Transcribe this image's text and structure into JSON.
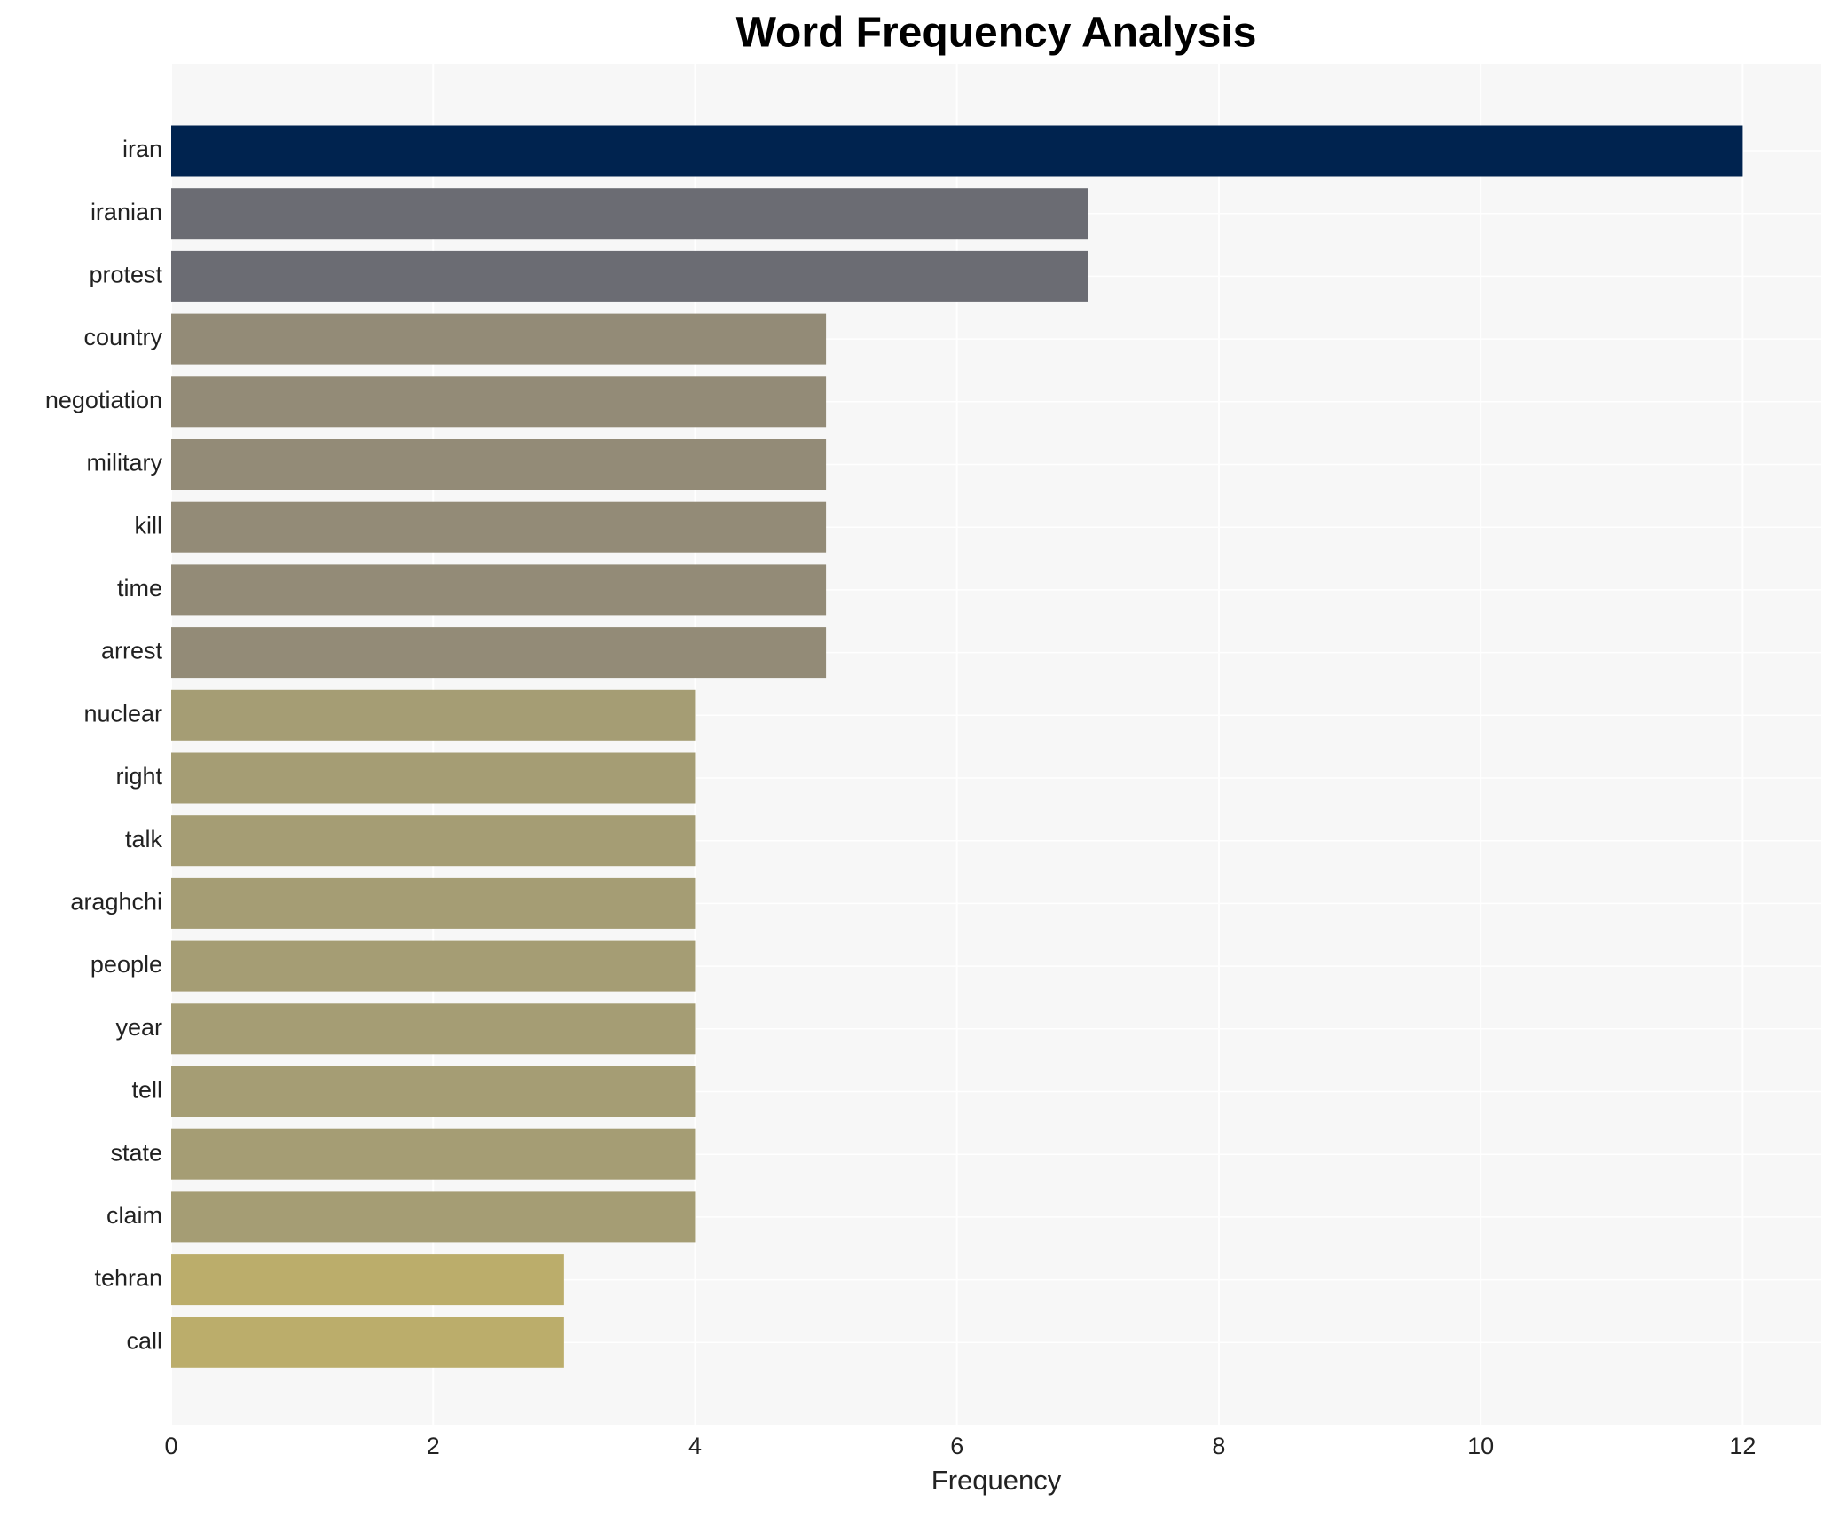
{
  "chart_data": {
    "type": "barh",
    "title": "Word Frequency Analysis",
    "x_label": "Frequency",
    "categories": [
      "iran",
      "iranian",
      "protest",
      "country",
      "negotiation",
      "military",
      "kill",
      "time",
      "arrest",
      "nuclear",
      "right",
      "talk",
      "araghchi",
      "people",
      "year",
      "tell",
      "state",
      "claim",
      "tehran",
      "call"
    ],
    "values": [
      12,
      7,
      7,
      5,
      5,
      5,
      5,
      5,
      5,
      4,
      4,
      4,
      4,
      4,
      4,
      4,
      4,
      4,
      3,
      3
    ],
    "colors": [
      "#00234f",
      "#6b6c73",
      "#6b6c73",
      "#938b77",
      "#938b77",
      "#938b77",
      "#938b77",
      "#938b77",
      "#938b77",
      "#a59d74",
      "#a59d74",
      "#a59d74",
      "#a59d74",
      "#a59d74",
      "#a59d74",
      "#a59d74",
      "#a59d74",
      "#a59d74",
      "#bbad6b",
      "#bbad6b"
    ],
    "xlim": [
      0,
      12.6
    ],
    "xticks": [
      0,
      2,
      4,
      6,
      8,
      10,
      12
    ],
    "grid": true
  }
}
